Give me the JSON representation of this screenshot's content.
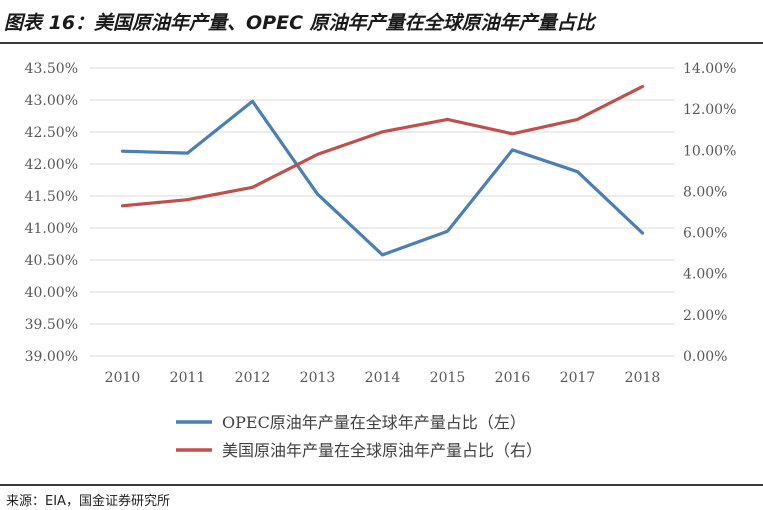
{
  "figure": {
    "title": "图表 16：美国原油年产量、OPEC 原油年产量在全球原油年产量占比",
    "source": "来源：EIA，国金证券研究所"
  },
  "chart_data": {
    "type": "line",
    "title": "图表 16：美国原油年产量、OPEC 原油年产量在全球原油年产量占比",
    "xlabel": "",
    "ylabel_left": "",
    "ylabel_right": "",
    "x": [
      "2010",
      "2011",
      "2012",
      "2013",
      "2014",
      "2015",
      "2016",
      "2017",
      "2018"
    ],
    "y_left": {
      "min": 39.0,
      "max": 43.5,
      "step": 0.5,
      "ticks": [
        "39.00%",
        "39.50%",
        "40.00%",
        "40.50%",
        "41.00%",
        "41.50%",
        "42.00%",
        "42.50%",
        "43.00%",
        "43.50%"
      ]
    },
    "y_right": {
      "min": 0,
      "max": 14,
      "step": 2,
      "ticks": [
        "0.00%",
        "2.00%",
        "4.00%",
        "6.00%",
        "8.00%",
        "10.00%",
        "12.00%",
        "14.00%"
      ]
    },
    "series": [
      {
        "name": "OPEC原油年产量在全球年产量占比（左）",
        "axis": "left",
        "color": "#4a7eb4",
        "values": [
          42.2,
          42.17,
          42.98,
          41.53,
          40.58,
          40.95,
          42.22,
          41.88,
          40.92
        ]
      },
      {
        "name": "美国原油年产量在全球原油年产量占比（右）",
        "axis": "right",
        "color": "#c0504d",
        "values": [
          7.3,
          7.6,
          8.2,
          9.8,
          10.9,
          11.5,
          10.8,
          11.5,
          13.1
        ]
      }
    ],
    "grid": true,
    "legend_position": "bottom"
  }
}
